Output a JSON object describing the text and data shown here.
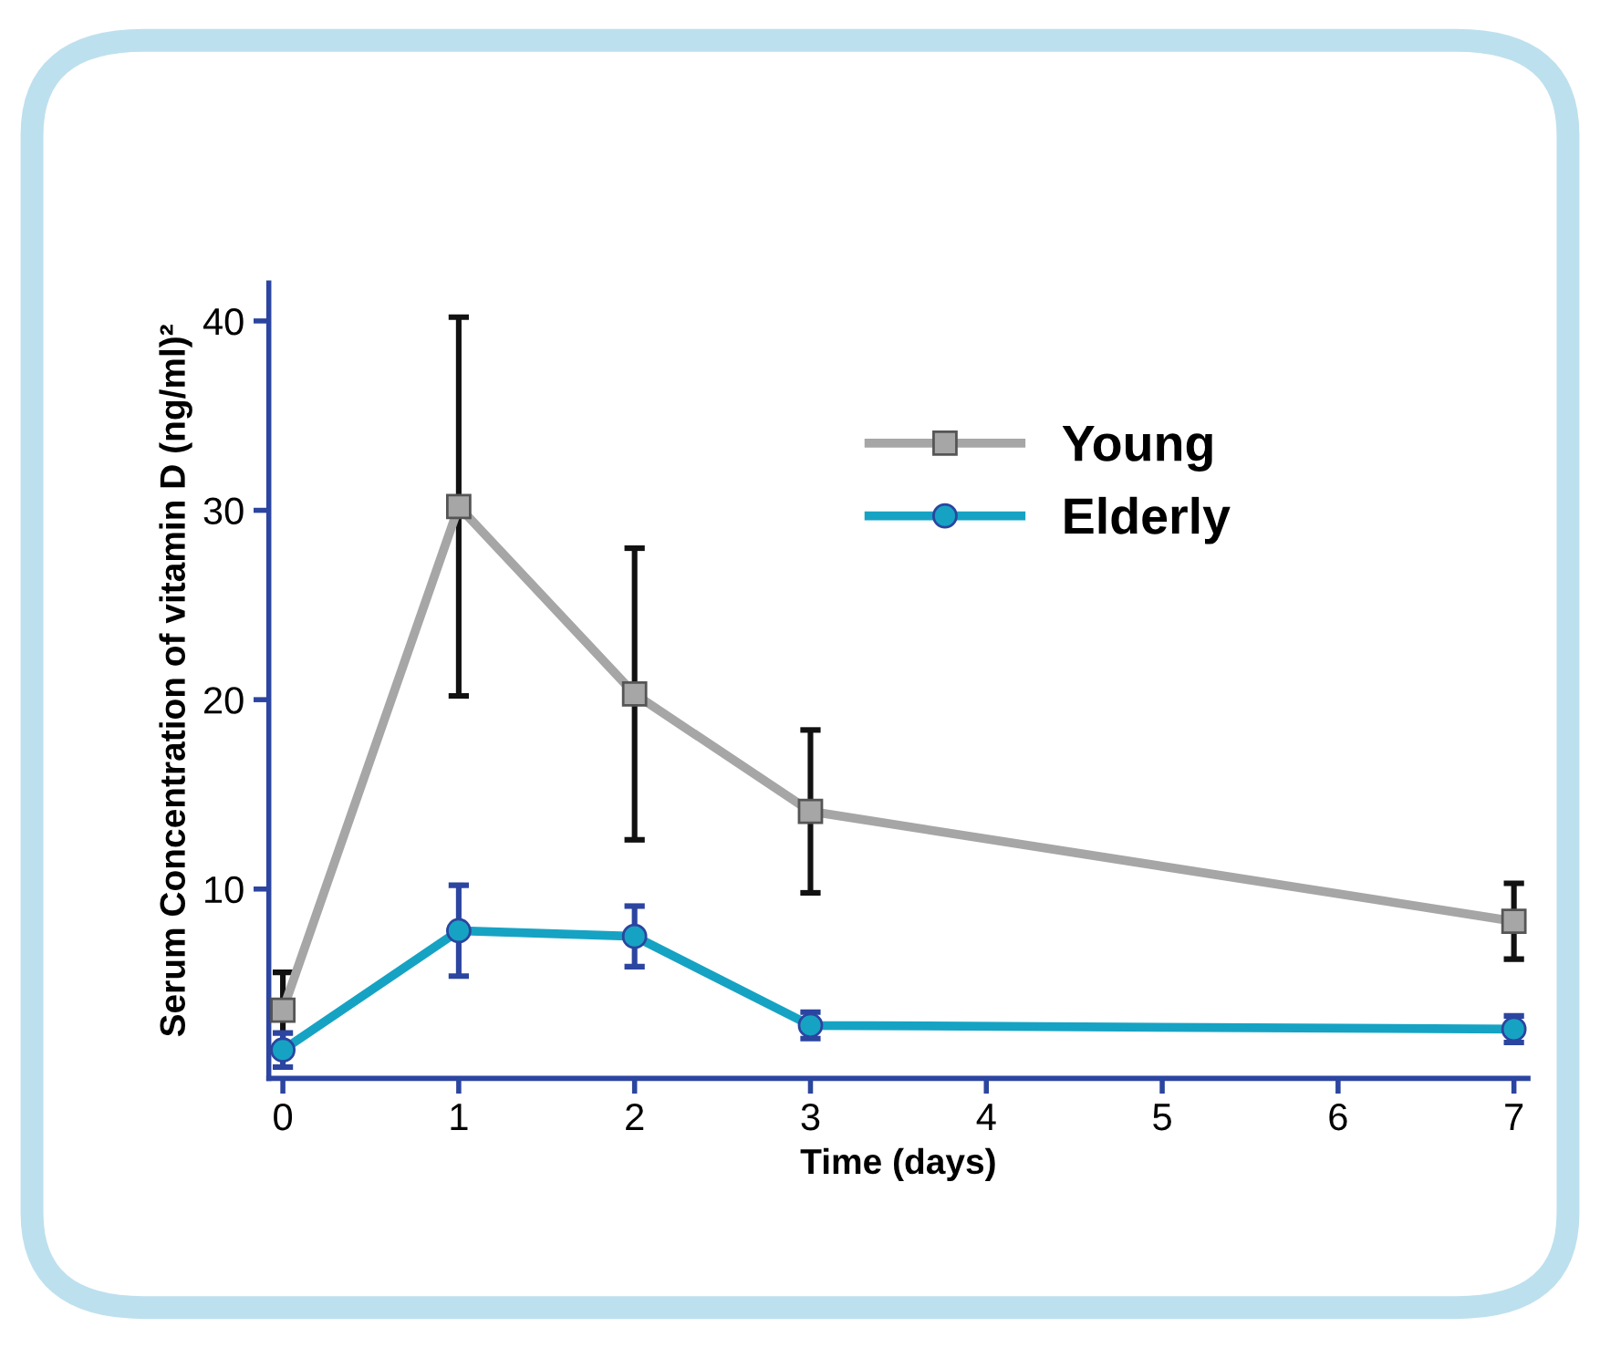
{
  "chart_data": {
    "type": "line",
    "xlabel": "Time (days)",
    "ylabel": "Serum Concentration of vitamin D (ng/ml)²",
    "x": [
      0,
      1,
      2,
      3,
      7
    ],
    "series": [
      {
        "name": "Young",
        "color": "#a6a6a6",
        "marker": "square",
        "values": [
          3.6,
          30.2,
          20.3,
          14.1,
          8.3
        ],
        "errors": [
          2,
          10,
          7.7,
          4.3,
          2
        ]
      },
      {
        "name": "Elderly",
        "color": "#16a3c3",
        "marker": "circle",
        "values": [
          1.5,
          7.8,
          7.5,
          2.8,
          2.6
        ],
        "errors": [
          0.9,
          2.4,
          1.6,
          0.7,
          0.7
        ]
      }
    ],
    "xlim": [
      -0.08,
      7.08
    ],
    "xticks": [
      0,
      1,
      2,
      3,
      4,
      5,
      6,
      7
    ],
    "ylim": [
      0,
      42
    ],
    "yticks": [
      10,
      20,
      30,
      40
    ],
    "grid": false,
    "legend": "top right",
    "line_style": "solid"
  }
}
